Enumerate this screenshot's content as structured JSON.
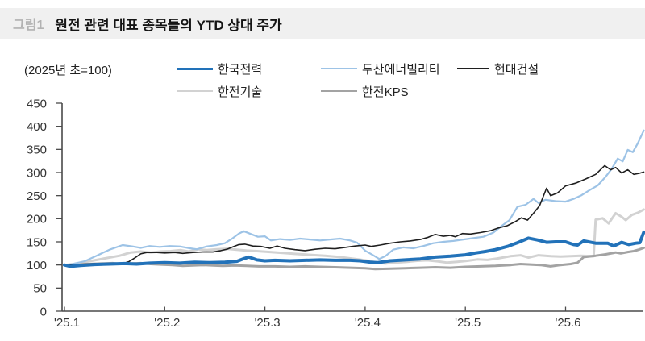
{
  "header": {
    "figure_label": "그림1",
    "title": "원전 관련 대표 종목들의 YTD 상대 주가"
  },
  "chart_data": {
    "type": "line",
    "title": "원전 관련 대표 종목들의 YTD 상대 주가",
    "note": "(2025년 초=100)",
    "xlabel": "",
    "ylabel": "",
    "ylim": [
      0,
      450
    ],
    "y_ticks": [
      0,
      50,
      100,
      150,
      200,
      250,
      300,
      350,
      400,
      450
    ],
    "x_tick_labels": [
      "'25.1",
      "'25.2",
      "'25.3",
      "'25.4",
      "'25.5",
      "'25.6"
    ],
    "x_unit": "months since 2025-01-01",
    "x_range": [
      0,
      5.78
    ],
    "grid": false,
    "legend_position": "top",
    "axis_color": "#4a4a4a",
    "series": [
      {
        "name": "한국전력",
        "color": "#2272b9",
        "width": 4,
        "points": [
          [
            0,
            100
          ],
          [
            0.06,
            97
          ],
          [
            0.16,
            99
          ],
          [
            0.3,
            101
          ],
          [
            0.45,
            102
          ],
          [
            0.6,
            103
          ],
          [
            0.72,
            102
          ],
          [
            0.85,
            104
          ],
          [
            1.0,
            105
          ],
          [
            1.15,
            104
          ],
          [
            1.3,
            106
          ],
          [
            1.45,
            105
          ],
          [
            1.6,
            106
          ],
          [
            1.72,
            108
          ],
          [
            1.78,
            113
          ],
          [
            1.84,
            117
          ],
          [
            1.92,
            111
          ],
          [
            2.0,
            109
          ],
          [
            2.1,
            110
          ],
          [
            2.25,
            109
          ],
          [
            2.4,
            110
          ],
          [
            2.55,
            111
          ],
          [
            2.7,
            110
          ],
          [
            2.85,
            110
          ],
          [
            2.95,
            109
          ],
          [
            3.05,
            106
          ],
          [
            3.12,
            105
          ],
          [
            3.25,
            109
          ],
          [
            3.4,
            111
          ],
          [
            3.55,
            113
          ],
          [
            3.7,
            117
          ],
          [
            3.85,
            119
          ],
          [
            4.0,
            122
          ],
          [
            4.1,
            126
          ],
          [
            4.2,
            129
          ],
          [
            4.3,
            133
          ],
          [
            4.42,
            140
          ],
          [
            4.52,
            148
          ],
          [
            4.63,
            158
          ],
          [
            4.72,
            154
          ],
          [
            4.81,
            149
          ],
          [
            4.9,
            150
          ],
          [
            5.0,
            150
          ],
          [
            5.08,
            144
          ],
          [
            5.12,
            143
          ],
          [
            5.18,
            152
          ],
          [
            5.3,
            147
          ],
          [
            5.42,
            147
          ],
          [
            5.48,
            141
          ],
          [
            5.56,
            149
          ],
          [
            5.63,
            144
          ],
          [
            5.7,
            147
          ],
          [
            5.74,
            148
          ],
          [
            5.78,
            171
          ]
        ]
      },
      {
        "name": "두산에너빌리티",
        "color": "#9dc3e6",
        "width": 2.2,
        "points": [
          [
            0,
            100
          ],
          [
            0.08,
            102
          ],
          [
            0.2,
            108
          ],
          [
            0.32,
            120
          ],
          [
            0.45,
            133
          ],
          [
            0.58,
            143
          ],
          [
            0.68,
            140
          ],
          [
            0.76,
            137
          ],
          [
            0.85,
            141
          ],
          [
            0.95,
            139
          ],
          [
            1.05,
            141
          ],
          [
            1.15,
            140
          ],
          [
            1.25,
            136
          ],
          [
            1.32,
            134
          ],
          [
            1.42,
            140
          ],
          [
            1.52,
            143
          ],
          [
            1.6,
            147
          ],
          [
            1.68,
            158
          ],
          [
            1.74,
            168
          ],
          [
            1.79,
            173
          ],
          [
            1.86,
            167
          ],
          [
            1.93,
            161
          ],
          [
            2.0,
            162
          ],
          [
            2.06,
            153
          ],
          [
            2.15,
            156
          ],
          [
            2.25,
            154
          ],
          [
            2.35,
            157
          ],
          [
            2.45,
            155
          ],
          [
            2.55,
            153
          ],
          [
            2.65,
            155
          ],
          [
            2.75,
            157
          ],
          [
            2.85,
            153
          ],
          [
            2.92,
            148
          ],
          [
            3.0,
            131
          ],
          [
            3.08,
            121
          ],
          [
            3.14,
            113
          ],
          [
            3.2,
            119
          ],
          [
            3.28,
            133
          ],
          [
            3.38,
            138
          ],
          [
            3.48,
            136
          ],
          [
            3.58,
            141
          ],
          [
            3.68,
            147
          ],
          [
            3.78,
            150
          ],
          [
            3.88,
            152
          ],
          [
            3.98,
            155
          ],
          [
            4.08,
            158
          ],
          [
            4.18,
            161
          ],
          [
            4.28,
            170
          ],
          [
            4.36,
            184
          ],
          [
            4.44,
            197
          ],
          [
            4.52,
            226
          ],
          [
            4.6,
            230
          ],
          [
            4.68,
            243
          ],
          [
            4.73,
            234
          ],
          [
            4.8,
            241
          ],
          [
            4.9,
            238
          ],
          [
            5.0,
            237
          ],
          [
            5.08,
            243
          ],
          [
            5.16,
            251
          ],
          [
            5.24,
            262
          ],
          [
            5.32,
            272
          ],
          [
            5.4,
            291
          ],
          [
            5.46,
            308
          ],
          [
            5.52,
            330
          ],
          [
            5.57,
            324
          ],
          [
            5.62,
            349
          ],
          [
            5.67,
            344
          ],
          [
            5.72,
            363
          ],
          [
            5.78,
            391
          ]
        ]
      },
      {
        "name": "현대건설",
        "color": "#1f1f1f",
        "width": 1.6,
        "points": [
          [
            0,
            100
          ],
          [
            0.1,
            101
          ],
          [
            0.2,
            102
          ],
          [
            0.3,
            103
          ],
          [
            0.4,
            102
          ],
          [
            0.5,
            104
          ],
          [
            0.58,
            103
          ],
          [
            0.64,
            107
          ],
          [
            0.7,
            115
          ],
          [
            0.76,
            124
          ],
          [
            0.82,
            127
          ],
          [
            0.92,
            127
          ],
          [
            1.0,
            126
          ],
          [
            1.1,
            127
          ],
          [
            1.18,
            125
          ],
          [
            1.28,
            127
          ],
          [
            1.38,
            128
          ],
          [
            1.48,
            128
          ],
          [
            1.56,
            131
          ],
          [
            1.62,
            134
          ],
          [
            1.68,
            139
          ],
          [
            1.74,
            144
          ],
          [
            1.8,
            145
          ],
          [
            1.88,
            141
          ],
          [
            1.96,
            140
          ],
          [
            2.05,
            136
          ],
          [
            2.12,
            141
          ],
          [
            2.2,
            136
          ],
          [
            2.3,
            133
          ],
          [
            2.4,
            131
          ],
          [
            2.5,
            134
          ],
          [
            2.6,
            136
          ],
          [
            2.7,
            135
          ],
          [
            2.8,
            138
          ],
          [
            2.9,
            141
          ],
          [
            3.0,
            143
          ],
          [
            3.06,
            140
          ],
          [
            3.15,
            143
          ],
          [
            3.25,
            147
          ],
          [
            3.35,
            150
          ],
          [
            3.45,
            152
          ],
          [
            3.55,
            155
          ],
          [
            3.63,
            160
          ],
          [
            3.7,
            166
          ],
          [
            3.78,
            162
          ],
          [
            3.85,
            164
          ],
          [
            3.9,
            161
          ],
          [
            3.97,
            168
          ],
          [
            4.05,
            167
          ],
          [
            4.15,
            170
          ],
          [
            4.25,
            174
          ],
          [
            4.33,
            180
          ],
          [
            4.42,
            185
          ],
          [
            4.5,
            194
          ],
          [
            4.56,
            202
          ],
          [
            4.62,
            197
          ],
          [
            4.68,
            212
          ],
          [
            4.74,
            228
          ],
          [
            4.81,
            266
          ],
          [
            4.85,
            250
          ],
          [
            4.92,
            256
          ],
          [
            5.0,
            271
          ],
          [
            5.1,
            277
          ],
          [
            5.2,
            286
          ],
          [
            5.3,
            296
          ],
          [
            5.39,
            315
          ],
          [
            5.45,
            306
          ],
          [
            5.5,
            311
          ],
          [
            5.56,
            299
          ],
          [
            5.62,
            306
          ],
          [
            5.68,
            296
          ],
          [
            5.73,
            298
          ],
          [
            5.78,
            301
          ]
        ]
      },
      {
        "name": "한전기술",
        "color": "#d2d2d2",
        "width": 3,
        "points": [
          [
            0,
            100
          ],
          [
            0.1,
            102
          ],
          [
            0.2,
            106
          ],
          [
            0.3,
            110
          ],
          [
            0.42,
            115
          ],
          [
            0.55,
            120
          ],
          [
            0.66,
            127
          ],
          [
            0.76,
            129
          ],
          [
            0.86,
            127
          ],
          [
            0.96,
            129
          ],
          [
            1.06,
            130
          ],
          [
            1.16,
            132
          ],
          [
            1.24,
            129
          ],
          [
            1.34,
            134
          ],
          [
            1.42,
            132
          ],
          [
            1.52,
            134
          ],
          [
            1.62,
            135
          ],
          [
            1.72,
            133
          ],
          [
            1.82,
            131
          ],
          [
            1.92,
            130
          ],
          [
            2.05,
            128
          ],
          [
            2.18,
            126
          ],
          [
            2.3,
            124
          ],
          [
            2.45,
            122
          ],
          [
            2.6,
            120
          ],
          [
            2.75,
            117
          ],
          [
            2.9,
            113
          ],
          [
            3.0,
            110
          ],
          [
            3.1,
            106
          ],
          [
            3.2,
            103
          ],
          [
            3.3,
            105
          ],
          [
            3.42,
            107
          ],
          [
            3.52,
            109
          ],
          [
            3.62,
            110
          ],
          [
            3.72,
            108
          ],
          [
            3.82,
            105
          ],
          [
            3.92,
            107
          ],
          [
            4.02,
            109
          ],
          [
            4.12,
            112
          ],
          [
            4.22,
            111
          ],
          [
            4.32,
            114
          ],
          [
            4.45,
            119
          ],
          [
            4.55,
            121
          ],
          [
            4.63,
            116
          ],
          [
            4.73,
            121
          ],
          [
            4.85,
            119
          ],
          [
            4.95,
            118
          ],
          [
            5.05,
            119
          ],
          [
            5.15,
            120
          ],
          [
            5.28,
            119
          ],
          [
            5.3,
            198
          ],
          [
            5.37,
            201
          ],
          [
            5.43,
            190
          ],
          [
            5.5,
            212
          ],
          [
            5.56,
            204
          ],
          [
            5.6,
            197
          ],
          [
            5.66,
            208
          ],
          [
            5.72,
            213
          ],
          [
            5.78,
            220
          ]
        ]
      },
      {
        "name": "한전KPS",
        "color": "#a3a3a3",
        "width": 3,
        "points": [
          [
            0,
            100
          ],
          [
            0.12,
            100
          ],
          [
            0.24,
            102
          ],
          [
            0.36,
            103
          ],
          [
            0.48,
            104
          ],
          [
            0.56,
            102
          ],
          [
            0.66,
            103
          ],
          [
            0.76,
            104
          ],
          [
            0.86,
            102
          ],
          [
            0.96,
            101
          ],
          [
            1.08,
            100
          ],
          [
            1.18,
            98
          ],
          [
            1.28,
            99
          ],
          [
            1.38,
            100
          ],
          [
            1.48,
            99
          ],
          [
            1.58,
            98
          ],
          [
            1.7,
            99
          ],
          [
            1.82,
            98
          ],
          [
            1.94,
            97
          ],
          [
            2.1,
            97
          ],
          [
            2.25,
            96
          ],
          [
            2.4,
            97
          ],
          [
            2.55,
            96
          ],
          [
            2.7,
            95
          ],
          [
            2.85,
            94
          ],
          [
            3.0,
            93
          ],
          [
            3.1,
            91
          ],
          [
            3.25,
            92
          ],
          [
            3.4,
            93
          ],
          [
            3.55,
            94
          ],
          [
            3.7,
            95
          ],
          [
            3.85,
            94
          ],
          [
            4.0,
            96
          ],
          [
            4.15,
            97
          ],
          [
            4.3,
            98
          ],
          [
            4.45,
            100
          ],
          [
            4.55,
            102
          ],
          [
            4.65,
            101
          ],
          [
            4.75,
            100
          ],
          [
            4.85,
            97
          ],
          [
            4.95,
            100
          ],
          [
            5.05,
            102
          ],
          [
            5.12,
            105
          ],
          [
            5.18,
            117
          ],
          [
            5.3,
            120
          ],
          [
            5.4,
            123
          ],
          [
            5.5,
            127
          ],
          [
            5.55,
            125
          ],
          [
            5.62,
            128
          ],
          [
            5.68,
            130
          ],
          [
            5.73,
            133
          ],
          [
            5.78,
            137
          ]
        ]
      }
    ]
  }
}
